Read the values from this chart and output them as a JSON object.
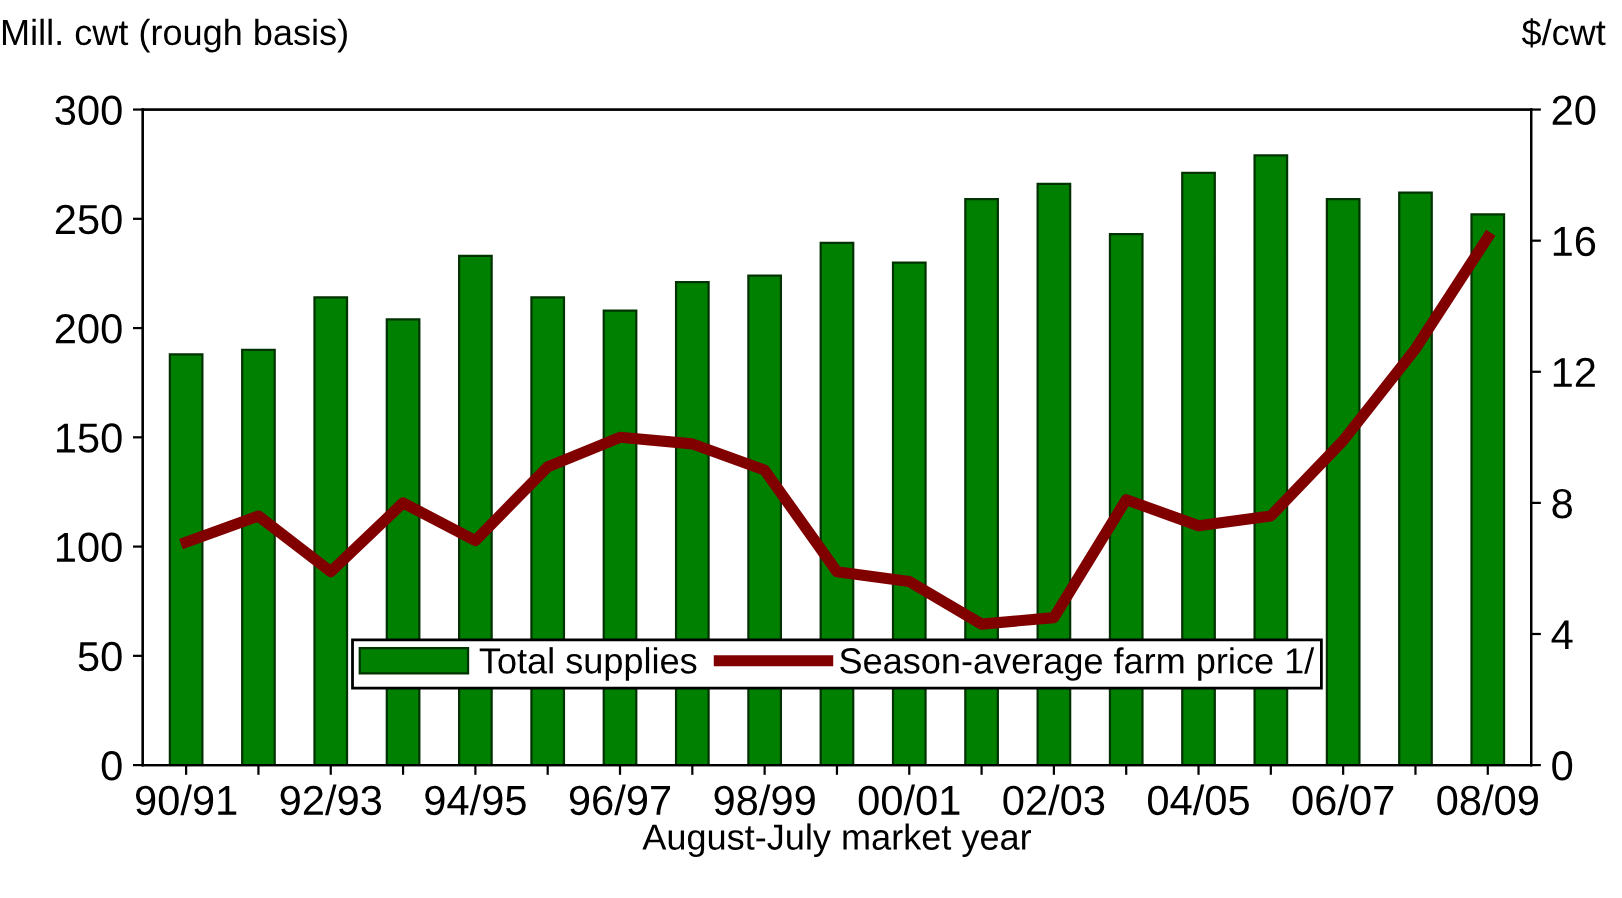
{
  "chart_data": {
    "type": "bar",
    "categories": [
      "90/91",
      null,
      "92/93",
      null,
      "94/95",
      null,
      "96/97",
      null,
      "98/99",
      null,
      "00/01",
      null,
      "02/03",
      null,
      "04/05",
      null,
      "06/07",
      null,
      "08/09"
    ],
    "series": [
      {
        "name": "Total supplies",
        "color": "#008000",
        "values": [
          188,
          190,
          214,
          204,
          233,
          214,
          208,
          221,
          224,
          239,
          230,
          259,
          266,
          243,
          271,
          279,
          259,
          262,
          252
        ]
      },
      {
        "name": "Season-average farm price 1/",
        "type": "line",
        "axis": "y2",
        "color": "#800000",
        "values": [
          6.8,
          7.6,
          5.9,
          8.0,
          6.85,
          9.1,
          10.0,
          9.8,
          9.0,
          5.9,
          5.6,
          4.3,
          4.5,
          8.1,
          7.3,
          7.6,
          9.9,
          12.7,
          16.1
        ]
      }
    ],
    "ylabel": "Mill. cwt (rough basis)",
    "y2label": "$/cwt",
    "xlabel": "August-July market year",
    "ylim": [
      0,
      300
    ],
    "yticks": [
      0,
      50,
      100,
      150,
      200,
      250,
      300
    ],
    "y2lim": [
      0,
      20
    ],
    "y2ticks": [
      0,
      4,
      8,
      12,
      16,
      20
    ],
    "legend": "bottom",
    "grid": false,
    "marker": "none",
    "line_style": "solid"
  }
}
